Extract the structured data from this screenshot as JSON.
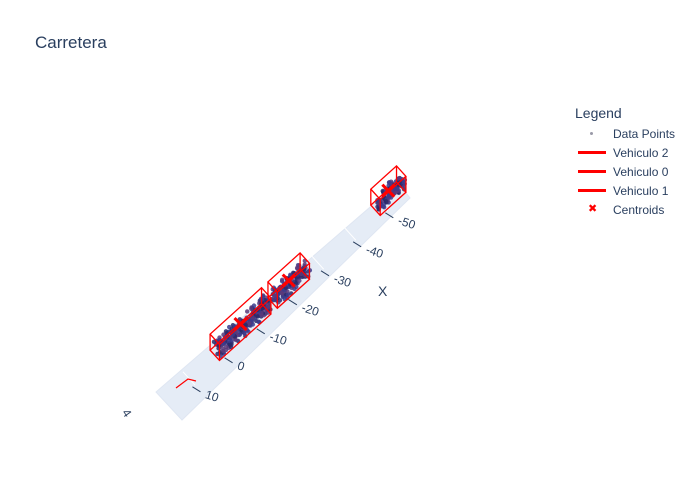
{
  "chart_data": {
    "type": "scatter3d",
    "title": "Carretera",
    "legend_title": "Legend",
    "legend_placement": "right",
    "axes": {
      "x": {
        "label": "X",
        "ticks": [
          "-50",
          "-40",
          "-30",
          "-20",
          "-10",
          "0",
          "10"
        ],
        "range": [
          -55,
          15
        ]
      },
      "partial_tick": "4"
    },
    "series": [
      {
        "name": "Data Points",
        "kind": "markers",
        "colors": [
          "#3b3b8c",
          "#5a3a7a",
          "#2a2a6a"
        ]
      },
      {
        "name": "Vehiculo 2",
        "kind": "box",
        "color": "#ff0000",
        "x_range": [
          -56,
          -48
        ]
      },
      {
        "name": "Vehiculo 0",
        "kind": "box",
        "color": "#ff0000",
        "x_range": [
          -26,
          -16
        ]
      },
      {
        "name": "Vehiculo 1",
        "kind": "box",
        "color": "#ff0000",
        "x_range": [
          -14,
          2
        ]
      },
      {
        "name": "Centroids",
        "kind": "x-markers",
        "color": "#ff0000",
        "x_values": [
          -52,
          -21,
          -6
        ]
      }
    ]
  }
}
